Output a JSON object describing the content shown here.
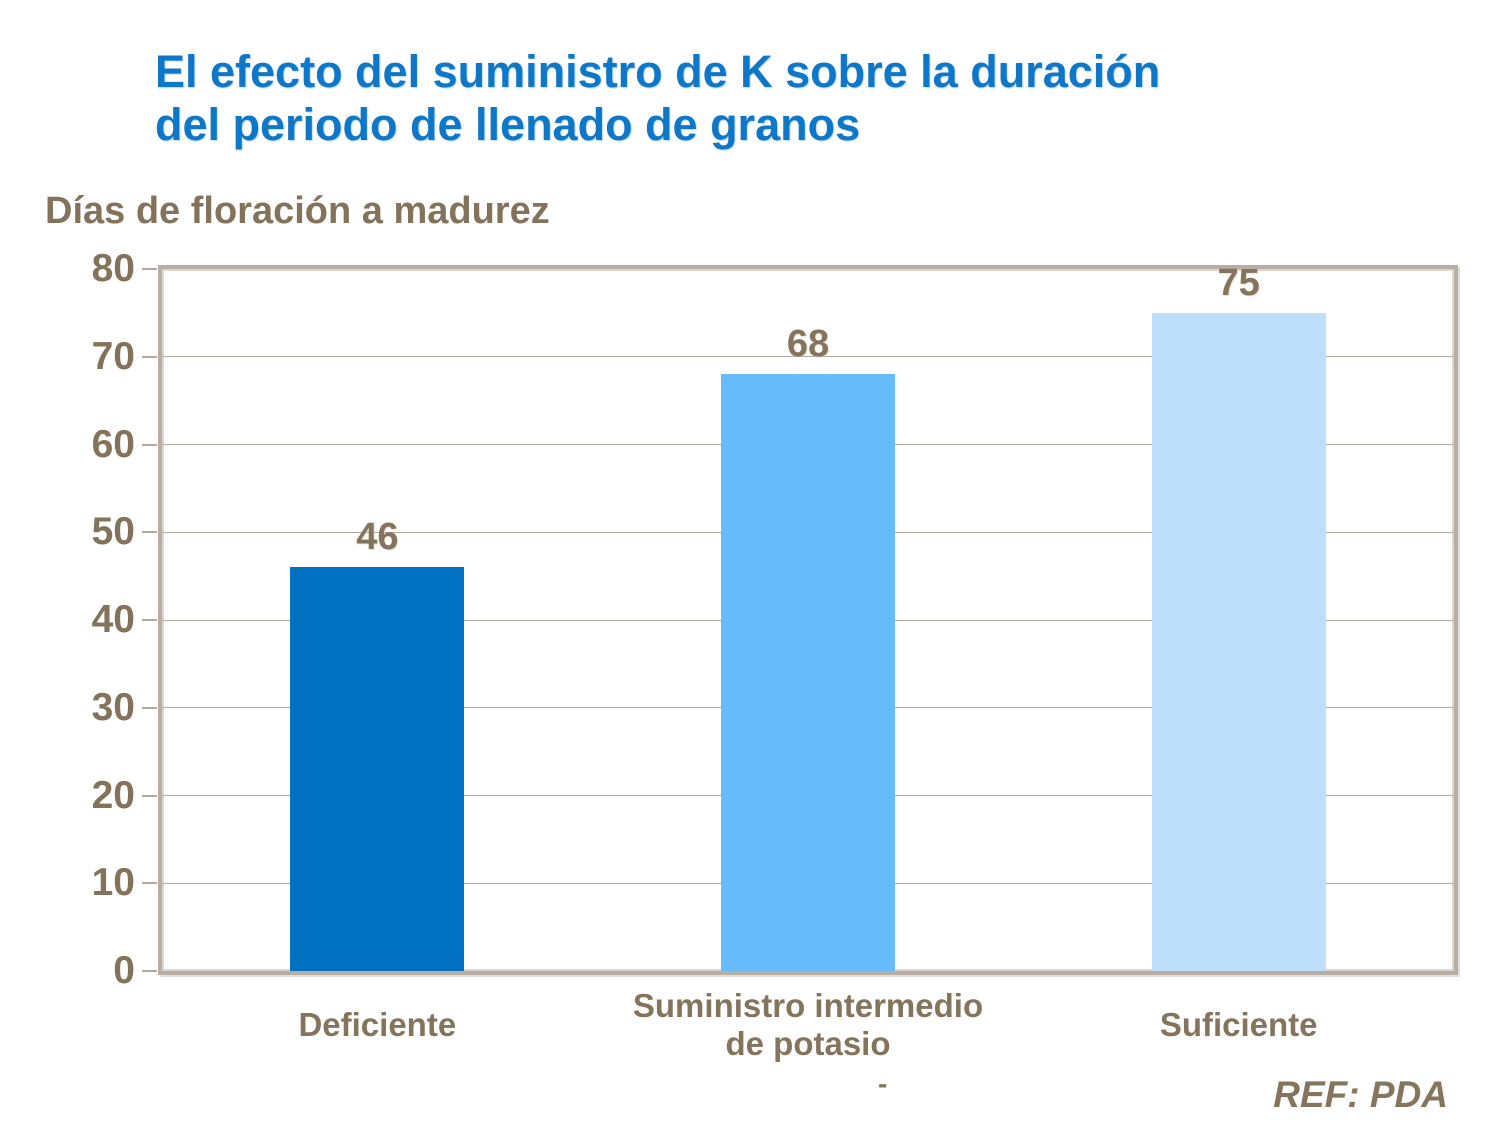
{
  "header": {
    "title_line1": "El efecto del suministro de K sobre la duración",
    "title_line2": "del periodo de llenado de granos"
  },
  "chart_data": {
    "type": "bar",
    "title": "El efecto del suministro de K sobre la duración del periodo de llenado de granos",
    "ylabel": "Días de floración a madurez",
    "xlabel": "",
    "categories": [
      "Deficiente",
      "Suministro intermedio de potasio",
      "Suficiente"
    ],
    "category_label_lines": [
      [
        "Deficiente"
      ],
      [
        "Suministro intermedio",
        "de potasio"
      ],
      [
        "Suficiente"
      ]
    ],
    "values": [
      46,
      68,
      75
    ],
    "data_labels": [
      "46",
      "68",
      "75"
    ],
    "ylim": [
      0,
      80
    ],
    "yticks": [
      0,
      10,
      20,
      30,
      40,
      50,
      60,
      70,
      80
    ],
    "grid": true,
    "legend": false,
    "bar_colors": [
      "#0070C0",
      "#66BCFA",
      "#BDDFFC"
    ]
  },
  "footer": {
    "dash": "-",
    "ref": "REF: PDA"
  },
  "colors": {
    "title_blue": "#0F77C8",
    "text_brown": "#83735A",
    "frame_tan": "#B8AEA3",
    "gridline_tan": "#B3A89C",
    "bar_deficiente": "#0070C0",
    "bar_intermedio": "#66BCFA",
    "bar_suficiente": "#BDDFFC"
  }
}
